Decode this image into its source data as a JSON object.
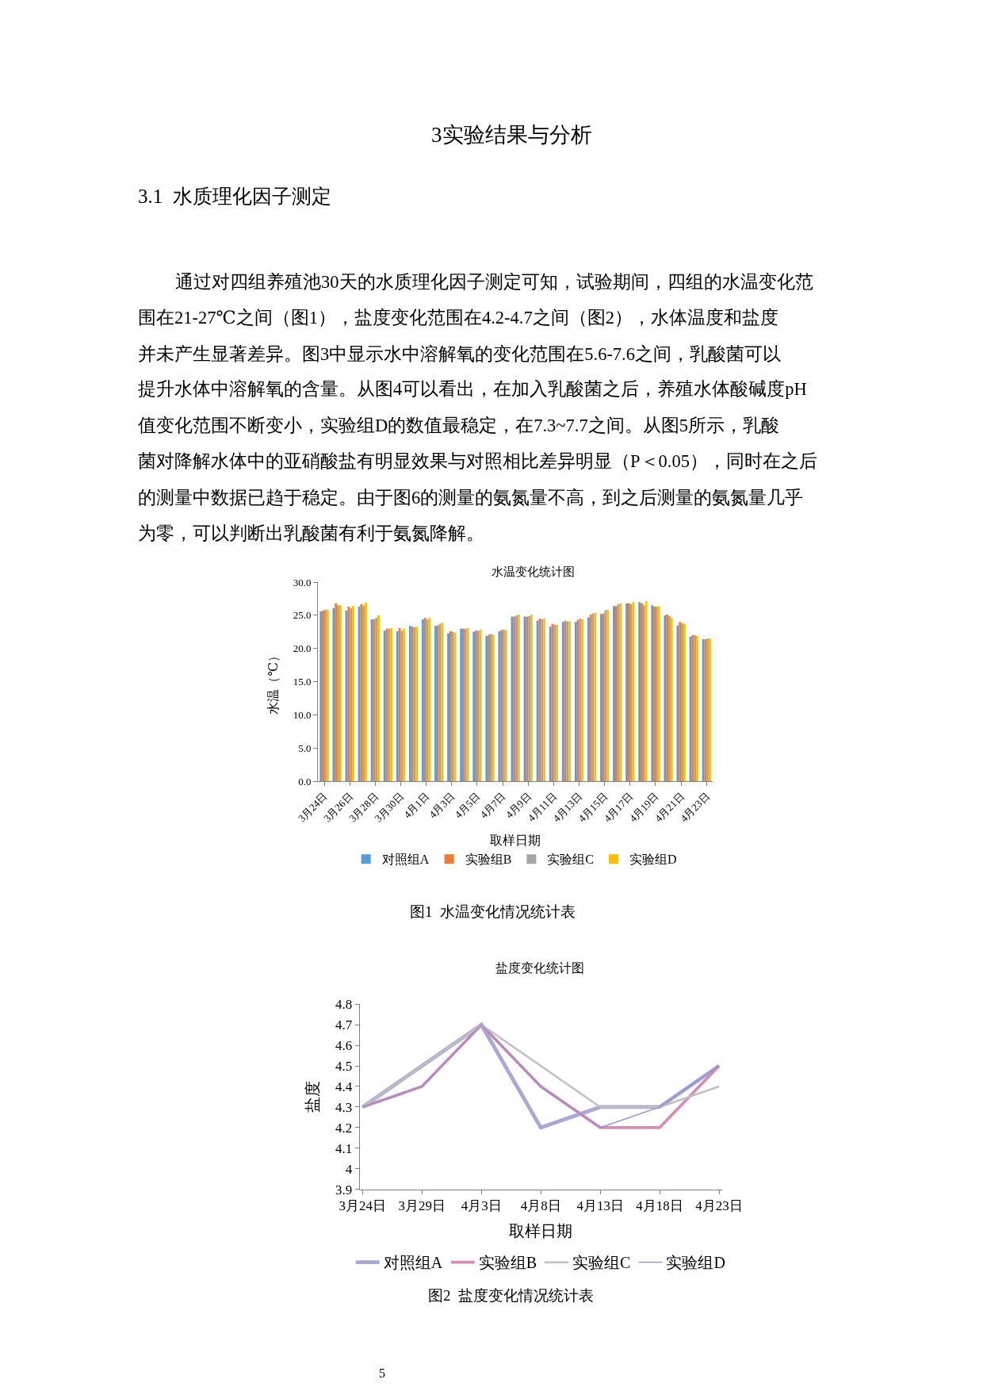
{
  "chart_data": [
    {
      "type": "bar",
      "title": "水温变化统计图",
      "xlabel": "取样日期",
      "ylabel": "水温（℃）",
      "categories": [
        "3月24日",
        null,
        "3月26日",
        null,
        "3月28日",
        null,
        "3月30日",
        null,
        "4月1日",
        null,
        "4月3日",
        null,
        "4月5日",
        null,
        "4月7日",
        null,
        "4月9日",
        null,
        "4月11日",
        null,
        "4月13日",
        null,
        "4月15日",
        null,
        "4月17日",
        null,
        "4月19日",
        null,
        "4月21日",
        null,
        "4月23日"
      ],
      "series": [
        {
          "name": "对照组A",
          "color": "#5b9bd5",
          "values": [
            25.6,
            26.1,
            25.7,
            26.3,
            24.4,
            22.7,
            22.6,
            23.4,
            24.4,
            23.4,
            22.3,
            23.0,
            22.5,
            21.9,
            22.6,
            24.8,
            24.8,
            24.2,
            23.3,
            24.0,
            24.0,
            24.7,
            25.2,
            26.4,
            26.8,
            27.0,
            26.5,
            25.0,
            23.5,
            21.8,
            21.4
          ]
        },
        {
          "name": "实验组B",
          "color": "#ed7d31",
          "values": [
            25.7,
            26.8,
            26.3,
            26.7,
            24.4,
            23.0,
            23.1,
            23.3,
            24.6,
            23.5,
            22.6,
            23.0,
            22.7,
            22.1,
            22.8,
            24.8,
            24.8,
            24.5,
            23.7,
            24.2,
            24.3,
            25.1,
            25.3,
            26.4,
            26.8,
            26.8,
            26.3,
            25.1,
            24.0,
            22.0,
            21.4
          ]
        },
        {
          "name": "实验组C",
          "color": "#a5a5a5",
          "values": [
            25.9,
            26.5,
            26.1,
            26.5,
            24.6,
            23.0,
            22.7,
            23.2,
            24.4,
            23.7,
            22.5,
            23.0,
            22.7,
            22.2,
            22.8,
            25.0,
            24.9,
            24.4,
            23.6,
            24.1,
            24.5,
            25.3,
            25.8,
            26.7,
            26.7,
            26.5,
            26.3,
            24.9,
            23.8,
            22.0,
            21.5
          ]
        },
        {
          "name": "实验组D",
          "color": "#ffc000",
          "values": [
            25.8,
            26.5,
            26.4,
            26.9,
            25.0,
            23.1,
            23.0,
            23.3,
            24.6,
            23.9,
            22.4,
            23.1,
            22.8,
            22.1,
            22.8,
            25.1,
            25.1,
            24.5,
            23.6,
            24.1,
            24.4,
            25.4,
            25.8,
            26.8,
            27.0,
            27.1,
            26.4,
            24.6,
            23.7,
            21.9,
            21.5
          ]
        }
      ],
      "ylim": [
        0,
        30
      ],
      "yticks": [
        {
          "value": 0,
          "label": "0.0"
        },
        {
          "value": 5,
          "label": "5.0"
        },
        {
          "value": 10,
          "label": "10.0"
        },
        {
          "value": 15,
          "label": "15.0"
        },
        {
          "value": 20,
          "label": "20.0"
        },
        {
          "value": 25,
          "label": "25.0"
        },
        {
          "value": 30,
          "label": "30.0"
        }
      ],
      "legend": "bottom",
      "annotations": [
        "3实验结果与分析",
        "3.1  水质理化因子测定",
        "通过对四组养殖池30天的水质理化因子测定可知，试验期间，四组的水温变化范",
        "围在21-27℃之间（图1），盐度变化范围在4.2-4.7之间（图2），水体温度和盐度",
        "并未产生显著差异。图3中显示水中溶解氧的变化范围在5.6-7.6之间，乳酸菌可以",
        "提升水体中溶解氧的含量。从图4可以看出，在加入乳酸菌之后，养殖水体酸碱度pH",
        "值变化范围不断变小，实验组D的数值最稳定，在7.3~7.7之间。从图5所示，乳酸",
        "菌对降解水体中的亚硝酸盐有明显效果与对照相比差异明显（P＜0.05），同时在之后",
        "的测量中数据已趋于稳定。由于图6的测量的氨氮量不高，到之后测量的氨氮量几乎",
        "为零，可以判断出乳酸菌有利于氨氮降解。",
        "图1  水温变化情况统计表"
      ]
    },
    {
      "type": "line",
      "title": "盐度变化统计图",
      "xlabel": "取样日期",
      "ylabel": "盐度",
      "categories": [
        "3月24日",
        "3月29日",
        "4月3日",
        "4月8日",
        "4月13日",
        "4月18日",
        "4月23日"
      ],
      "series": [
        {
          "name": "对照组A",
          "color": "#a9a9d6",
          "values": [
            4.3,
            4.5,
            4.7,
            4.2,
            4.3,
            4.3,
            4.5
          ]
        },
        {
          "name": "实验组B",
          "color": "#d48fb4",
          "values": [
            4.3,
            4.4,
            4.7,
            4.4,
            4.2,
            4.2,
            4.5
          ]
        },
        {
          "name": "实验组C",
          "color": "#c0c0c0",
          "values": [
            4.3,
            4.5,
            4.7,
            4.5,
            4.3,
            4.3,
            4.4
          ]
        },
        {
          "name": "实验组D",
          "color": "#8f8fc8",
          "values": [
            4.3,
            4.4,
            4.7,
            4.4,
            4.2,
            4.3,
            4.5
          ]
        }
      ],
      "ylim": [
        3.9,
        4.8
      ],
      "yticks": [
        3.9,
        4,
        4.1,
        4.2,
        4.3,
        4.4,
        4.5,
        4.6,
        4.7,
        4.8
      ],
      "legend": "bottom",
      "annotations": [
        "图2  盐度变化情况统计表",
        "5"
      ]
    }
  ]
}
